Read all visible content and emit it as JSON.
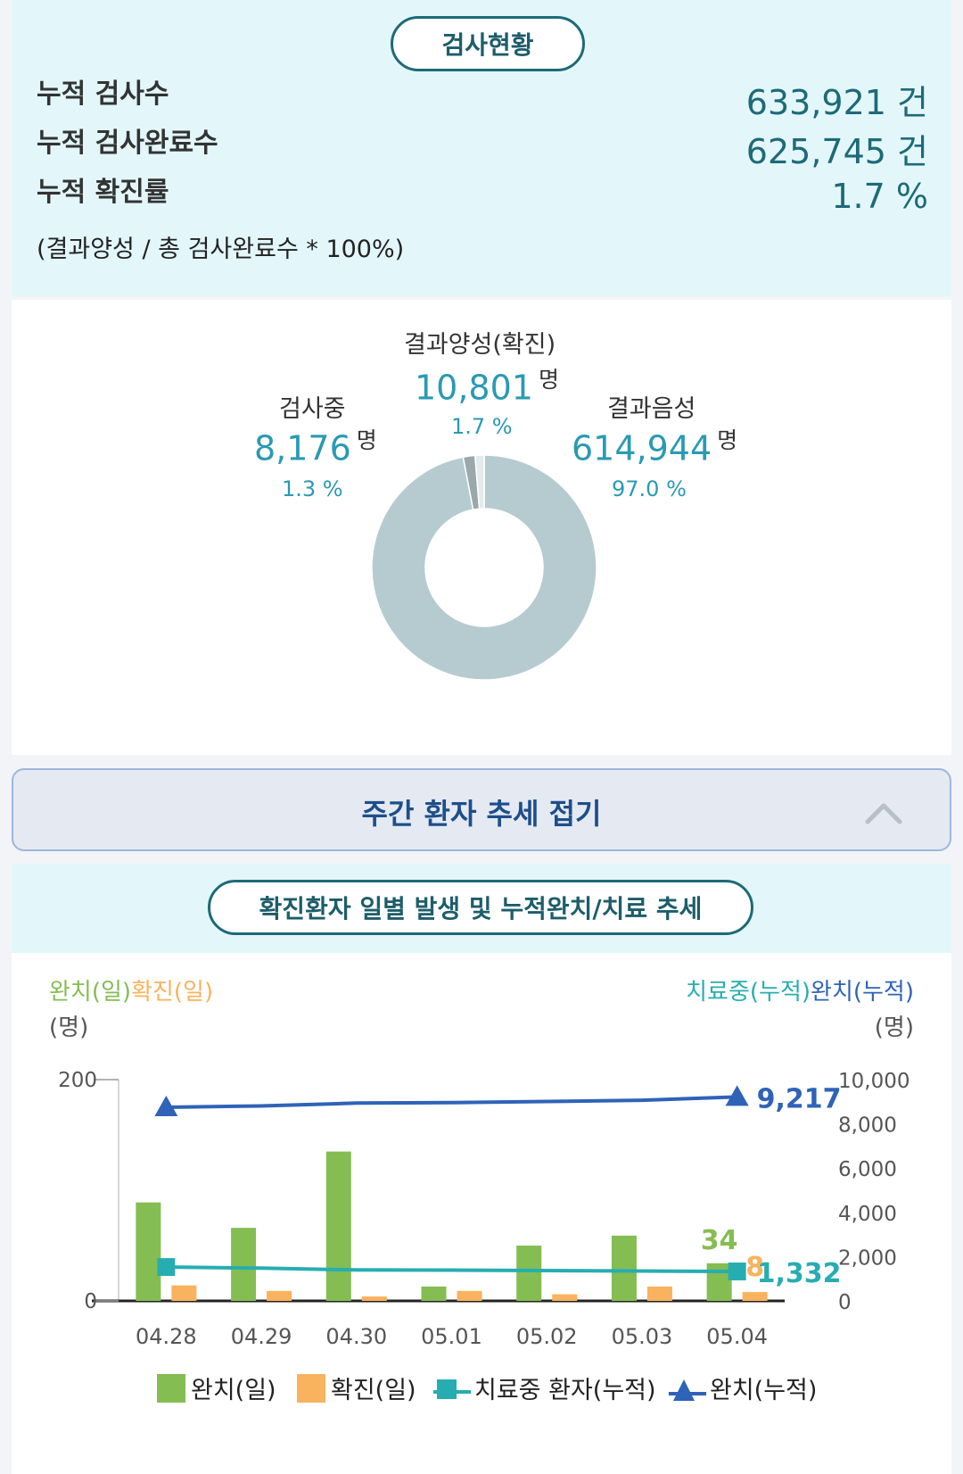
{
  "test_status": {
    "title": "검사현황",
    "rows": [
      {
        "label": "누적 검사수",
        "value": "633,921",
        "unit": "건"
      },
      {
        "label": "누적 검사완료수",
        "value": "625,745",
        "unit": "건"
      },
      {
        "label": "누적 확진률",
        "value": "1.7",
        "unit": "%"
      }
    ],
    "note": "(결과양성 / 총 검사완료수 * 100%)"
  },
  "donut": {
    "unit": "명",
    "segments": [
      {
        "label": "결과음성",
        "value": "614,944",
        "pct": "97.0 %",
        "share": 97.0,
        "color": "#b6cbd0"
      },
      {
        "label": "결과양성(확진)",
        "value": "10,801",
        "pct": "1.7 %",
        "share": 1.7,
        "color": "#9aa7ab"
      },
      {
        "label": "검사중",
        "value": "8,176",
        "pct": "1.3 %",
        "share": 1.3,
        "color": "#e4ebee"
      }
    ]
  },
  "collapse": {
    "label": "주간 환자 추세 접기"
  },
  "chart_title": "확진환자 일별 발생 및 누적완치/치료 추세",
  "chart_data": {
    "type": "bar",
    "left_axis_labels": {
      "a": "완치(일)",
      "b": "확진(일)",
      "unit": "(명)"
    },
    "right_axis_labels": {
      "a": "치료중(누적)",
      "b": "완치(누적)",
      "unit": "(명)"
    },
    "categories": [
      "04.28",
      "04.29",
      "04.30",
      "05.01",
      "05.02",
      "05.03",
      "05.04"
    ],
    "y_left_ticks": [
      "200",
      "0"
    ],
    "y_left_range": [
      0,
      200
    ],
    "y_right_ticks": [
      "10,000",
      "8,000",
      "6,000",
      "4,000",
      "2,000",
      "0"
    ],
    "y_right_range": [
      0,
      10000
    ],
    "series": [
      {
        "name": "완치(일)",
        "kind": "bar",
        "axis": "left",
        "color": "#84bd52",
        "values": [
          89,
          66,
          135,
          13,
          50,
          59,
          34
        ]
      },
      {
        "name": "확진(일)",
        "kind": "bar",
        "axis": "left",
        "color": "#f9b25e",
        "values": [
          14,
          9,
          4,
          9,
          6,
          13,
          8
        ]
      },
      {
        "name": "치료중 환자(누적)",
        "kind": "line",
        "axis": "right",
        "color": "#27adb1",
        "values": [
          1530,
          1480,
          1400,
          1390,
          1370,
          1350,
          1332
        ]
      },
      {
        "name": "완치(누적)",
        "kind": "line",
        "axis": "right",
        "color": "#2e63b8",
        "values": [
          8750,
          8810,
          8940,
          8960,
          9010,
          9070,
          9217
        ]
      }
    ],
    "data_labels": [
      {
        "series": "완치(누적)",
        "text": "9,217"
      },
      {
        "series": "치료중 환자(누적)",
        "text": "1,332"
      },
      {
        "series": "완치(일)",
        "text": "34"
      },
      {
        "series": "확진(일)",
        "text": "8"
      }
    ],
    "legend": [
      "완치(일)",
      "확진(일)",
      "치료중 환자(누적)",
      "완치(누적)"
    ]
  }
}
